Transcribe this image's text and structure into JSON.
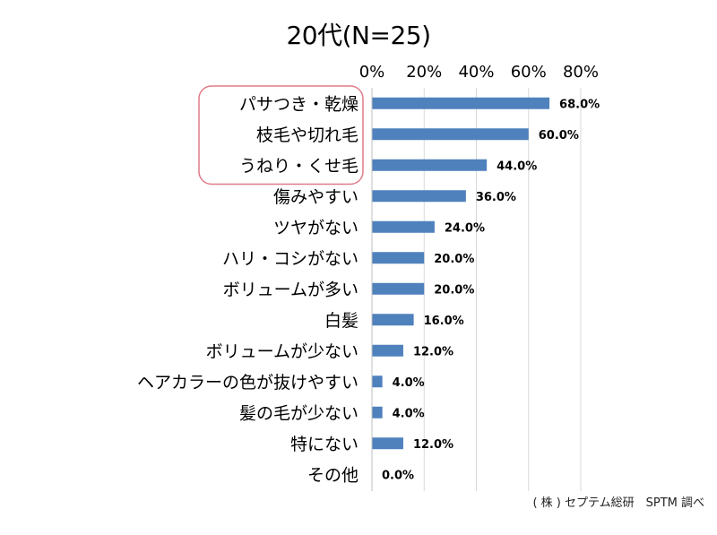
{
  "chart_data": {
    "type": "bar",
    "orientation": "horizontal",
    "title": "20代(N=25)",
    "categories": [
      "パサつき・乾燥",
      "枝毛や切れ毛",
      "うねり・くせ毛",
      "傷みやすい",
      "ツヤがない",
      "ハリ・コシがない",
      "ボリュームが多い",
      "白髪",
      "ボリュームが少ない",
      "ヘアカラーの色が抜けやすい",
      "髪の毛が少ない",
      "特にない",
      "その他"
    ],
    "values": [
      68.0,
      60.0,
      44.0,
      36.0,
      24.0,
      20.0,
      20.0,
      16.0,
      12.0,
      4.0,
      4.0,
      12.0,
      0.0
    ],
    "data_labels": [
      "68.0%",
      "60.0%",
      "44.0%",
      "36.0%",
      "24.0%",
      "20.0%",
      "20.0%",
      "16.0%",
      "12.0%",
      "4.0%",
      "4.0%",
      "12.0%",
      "0.0%"
    ],
    "x_ticks": [
      "0%",
      "20%",
      "40%",
      "60%",
      "80%"
    ],
    "xlim": [
      0,
      80
    ],
    "bar_color": "#4f81bd",
    "grid": true,
    "highlight_categories": [
      "パサつき・乾燥",
      "枝毛や切れ毛",
      "うねり・くせ毛"
    ],
    "highlight_color": "#e07a8a"
  },
  "source_note": "( 株 ) セプテム総研　SPTM 調べ"
}
